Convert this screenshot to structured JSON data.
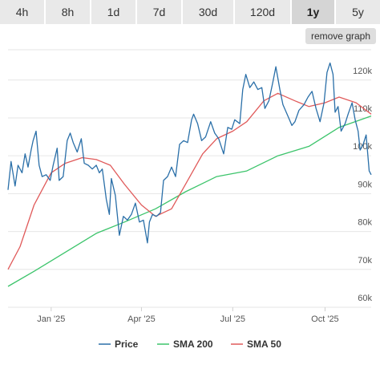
{
  "tabs": [
    {
      "label": "4h",
      "active": false
    },
    {
      "label": "8h",
      "active": false
    },
    {
      "label": "1d",
      "active": false
    },
    {
      "label": "7d",
      "active": false
    },
    {
      "label": "30d",
      "active": false
    },
    {
      "label": "120d",
      "active": false
    },
    {
      "label": "1y",
      "active": true
    },
    {
      "label": "5y",
      "active": false
    }
  ],
  "remove_graph_label": "remove graph",
  "chart_data": {
    "type": "line",
    "x_ticks": [
      "Jan '25",
      "Apr '25",
      "Jul '25",
      "Oct '25"
    ],
    "y_ticks": [
      "60k",
      "70k",
      "80k",
      "90k",
      "100k",
      "110k",
      "120k"
    ],
    "ylim": [
      60000,
      128000
    ],
    "grid": true,
    "legend_position": "bottom",
    "series": [
      {
        "name": "Price",
        "color": "#2a6fa8",
        "points": [
          [
            "2024-11-19",
            91000
          ],
          [
            "2024-11-22",
            98500
          ],
          [
            "2024-11-26",
            92000
          ],
          [
            "2024-11-29",
            97500
          ],
          [
            "2024-12-03",
            95500
          ],
          [
            "2024-12-06",
            100500
          ],
          [
            "2024-12-09",
            97000
          ],
          [
            "2024-12-12",
            101500
          ],
          [
            "2024-12-14",
            104000
          ],
          [
            "2024-12-17",
            106500
          ],
          [
            "2024-12-20",
            97500
          ],
          [
            "2024-12-23",
            94500
          ],
          [
            "2024-12-27",
            95000
          ],
          [
            "2024-12-31",
            93500
          ],
          [
            "2025-01-03",
            97500
          ],
          [
            "2025-01-07",
            102000
          ],
          [
            "2025-01-09",
            93500
          ],
          [
            "2025-01-13",
            94500
          ],
          [
            "2025-01-17",
            104000
          ],
          [
            "2025-01-20",
            106000
          ],
          [
            "2025-01-23",
            103500
          ],
          [
            "2025-01-27",
            101000
          ],
          [
            "2025-01-31",
            104500
          ],
          [
            "2025-02-03",
            98000
          ],
          [
            "2025-02-07",
            97500
          ],
          [
            "2025-02-11",
            96500
          ],
          [
            "2025-02-15",
            97500
          ],
          [
            "2025-02-18",
            95500
          ],
          [
            "2025-02-21",
            96500
          ],
          [
            "2025-02-25",
            88500
          ],
          [
            "2025-02-28",
            84500
          ],
          [
            "2025-03-02",
            94000
          ],
          [
            "2025-03-06",
            89500
          ],
          [
            "2025-03-10",
            79000
          ],
          [
            "2025-03-14",
            84000
          ],
          [
            "2025-03-18",
            83000
          ],
          [
            "2025-03-22",
            84500
          ],
          [
            "2025-03-26",
            87500
          ],
          [
            "2025-03-30",
            82500
          ],
          [
            "2025-04-03",
            83000
          ],
          [
            "2025-04-07",
            77000
          ],
          [
            "2025-04-09",
            82500
          ],
          [
            "2025-04-12",
            84500
          ],
          [
            "2025-04-16",
            84000
          ],
          [
            "2025-04-20",
            85000
          ],
          [
            "2025-04-23",
            93500
          ],
          [
            "2025-04-27",
            94500
          ],
          [
            "2025-05-01",
            97000
          ],
          [
            "2025-05-05",
            94500
          ],
          [
            "2025-05-09",
            103000
          ],
          [
            "2025-05-13",
            104000
          ],
          [
            "2025-05-17",
            103500
          ],
          [
            "2025-05-21",
            109500
          ],
          [
            "2025-05-23",
            111000
          ],
          [
            "2025-05-27",
            108500
          ],
          [
            "2025-05-31",
            104000
          ],
          [
            "2025-06-04",
            105000
          ],
          [
            "2025-06-09",
            109000
          ],
          [
            "2025-06-13",
            106000
          ],
          [
            "2025-06-17",
            104500
          ],
          [
            "2025-06-22",
            100500
          ],
          [
            "2025-06-26",
            107500
          ],
          [
            "2025-06-30",
            107000
          ],
          [
            "2025-07-03",
            109500
          ],
          [
            "2025-07-08",
            108500
          ],
          [
            "2025-07-11",
            117500
          ],
          [
            "2025-07-14",
            121500
          ],
          [
            "2025-07-18",
            118000
          ],
          [
            "2025-07-22",
            119500
          ],
          [
            "2025-07-26",
            117500
          ],
          [
            "2025-07-30",
            118000
          ],
          [
            "2025-08-02",
            112500
          ],
          [
            "2025-08-06",
            114500
          ],
          [
            "2025-08-10",
            119500
          ],
          [
            "2025-08-13",
            123500
          ],
          [
            "2025-08-17",
            117500
          ],
          [
            "2025-08-20",
            113500
          ],
          [
            "2025-08-25",
            110500
          ],
          [
            "2025-08-29",
            108000
          ],
          [
            "2025-09-01",
            109000
          ],
          [
            "2025-09-05",
            112000
          ],
          [
            "2025-09-10",
            113500
          ],
          [
            "2025-09-14",
            115500
          ],
          [
            "2025-09-18",
            117000
          ],
          [
            "2025-09-22",
            112500
          ],
          [
            "2025-09-26",
            109000
          ],
          [
            "2025-09-30",
            114000
          ],
          [
            "2025-10-03",
            122000
          ],
          [
            "2025-10-06",
            124500
          ],
          [
            "2025-10-09",
            121500
          ],
          [
            "2025-10-11",
            111500
          ],
          [
            "2025-10-14",
            113000
          ],
          [
            "2025-10-17",
            106500
          ],
          [
            "2025-10-21",
            108500
          ],
          [
            "2025-10-24",
            111000
          ],
          [
            "2025-10-28",
            114000
          ],
          [
            "2025-10-31",
            109500
          ],
          [
            "2025-11-03",
            106500
          ],
          [
            "2025-11-05",
            101500
          ],
          [
            "2025-11-08",
            103000
          ],
          [
            "2025-11-11",
            105500
          ],
          [
            "2025-11-14",
            96000
          ],
          [
            "2025-11-16",
            95000
          ]
        ]
      },
      {
        "name": "SMA 200",
        "color": "#3cc46b",
        "points": [
          [
            "2024-11-19",
            65500
          ],
          [
            "2024-12-15",
            69500
          ],
          [
            "2025-01-15",
            74500
          ],
          [
            "2025-02-15",
            79500
          ],
          [
            "2025-03-15",
            82500
          ],
          [
            "2025-04-15",
            86000
          ],
          [
            "2025-05-15",
            90500
          ],
          [
            "2025-06-15",
            94500
          ],
          [
            "2025-07-15",
            96000
          ],
          [
            "2025-08-15",
            100000
          ],
          [
            "2025-09-15",
            102500
          ],
          [
            "2025-10-15",
            107500
          ],
          [
            "2025-11-16",
            110500
          ]
        ]
      },
      {
        "name": "SMA 50",
        "color": "#e05a5a",
        "points": [
          [
            "2024-11-19",
            70000
          ],
          [
            "2024-12-01",
            76000
          ],
          [
            "2024-12-15",
            87000
          ],
          [
            "2025-01-01",
            95500
          ],
          [
            "2025-01-15",
            98000
          ],
          [
            "2025-02-01",
            99500
          ],
          [
            "2025-02-15",
            99000
          ],
          [
            "2025-03-01",
            97500
          ],
          [
            "2025-03-15",
            92500
          ],
          [
            "2025-04-01",
            87000
          ],
          [
            "2025-04-15",
            84000
          ],
          [
            "2025-05-01",
            86000
          ],
          [
            "2025-05-15",
            92500
          ],
          [
            "2025-06-01",
            100500
          ],
          [
            "2025-06-15",
            104500
          ],
          [
            "2025-07-01",
            106500
          ],
          [
            "2025-07-15",
            109000
          ],
          [
            "2025-08-01",
            114500
          ],
          [
            "2025-08-15",
            116500
          ],
          [
            "2025-09-01",
            114500
          ],
          [
            "2025-09-15",
            113000
          ],
          [
            "2025-10-01",
            114000
          ],
          [
            "2025-10-15",
            115500
          ],
          [
            "2025-11-01",
            114000
          ],
          [
            "2025-11-16",
            111000
          ]
        ]
      }
    ]
  }
}
